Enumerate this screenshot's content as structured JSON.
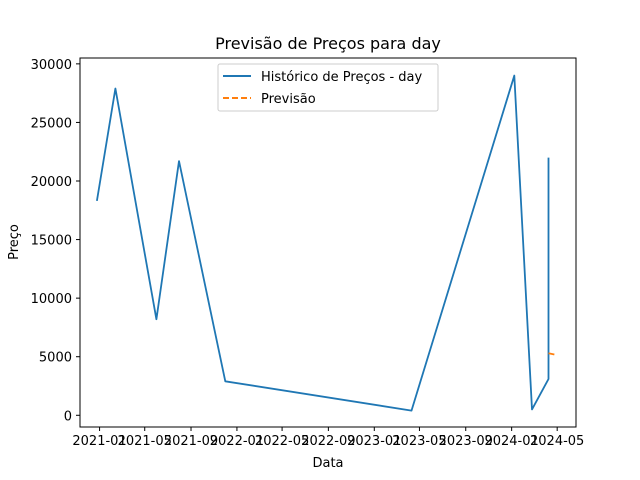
{
  "chart_data": {
    "type": "line",
    "title": "Previsão de Preços para day",
    "xlabel": "Data",
    "ylabel": "Preço",
    "xlim": [
      "2020-11-10",
      "2024-06-20"
    ],
    "ylim": [
      -1000,
      30500
    ],
    "x_ticks": [
      "2021-01",
      "2021-05",
      "2021-09",
      "2022-01",
      "2022-05",
      "2022-09",
      "2023-01",
      "2023-05",
      "2023-09",
      "2024-01",
      "2024-05"
    ],
    "y_ticks": [
      0,
      5000,
      10000,
      15000,
      20000,
      25000,
      30000
    ],
    "grid": false,
    "legend_position": "top-center",
    "series": [
      {
        "name": "Histórico de Preços - day",
        "style": "solid",
        "color": "#1f77b4",
        "points": [
          {
            "x": "2020-12-25",
            "y": 18300
          },
          {
            "x": "2021-02-12",
            "y": 27900
          },
          {
            "x": "2021-06-01",
            "y": 8200
          },
          {
            "x": "2021-07-31",
            "y": 21700
          },
          {
            "x": "2021-12-01",
            "y": 2900
          },
          {
            "x": "2023-04-10",
            "y": 400
          },
          {
            "x": "2024-01-08",
            "y": 29000
          },
          {
            "x": "2024-02-24",
            "y": 500
          },
          {
            "x": "2024-04-08",
            "y": 3100
          },
          {
            "x": "2024-04-08",
            "y": 22000
          }
        ]
      },
      {
        "name": "Previsão",
        "style": "dashed",
        "color": "#ff7f0e",
        "points": [
          {
            "x": "2024-04-08",
            "y": 5300
          },
          {
            "x": "2024-04-30",
            "y": 5150
          }
        ]
      }
    ]
  }
}
